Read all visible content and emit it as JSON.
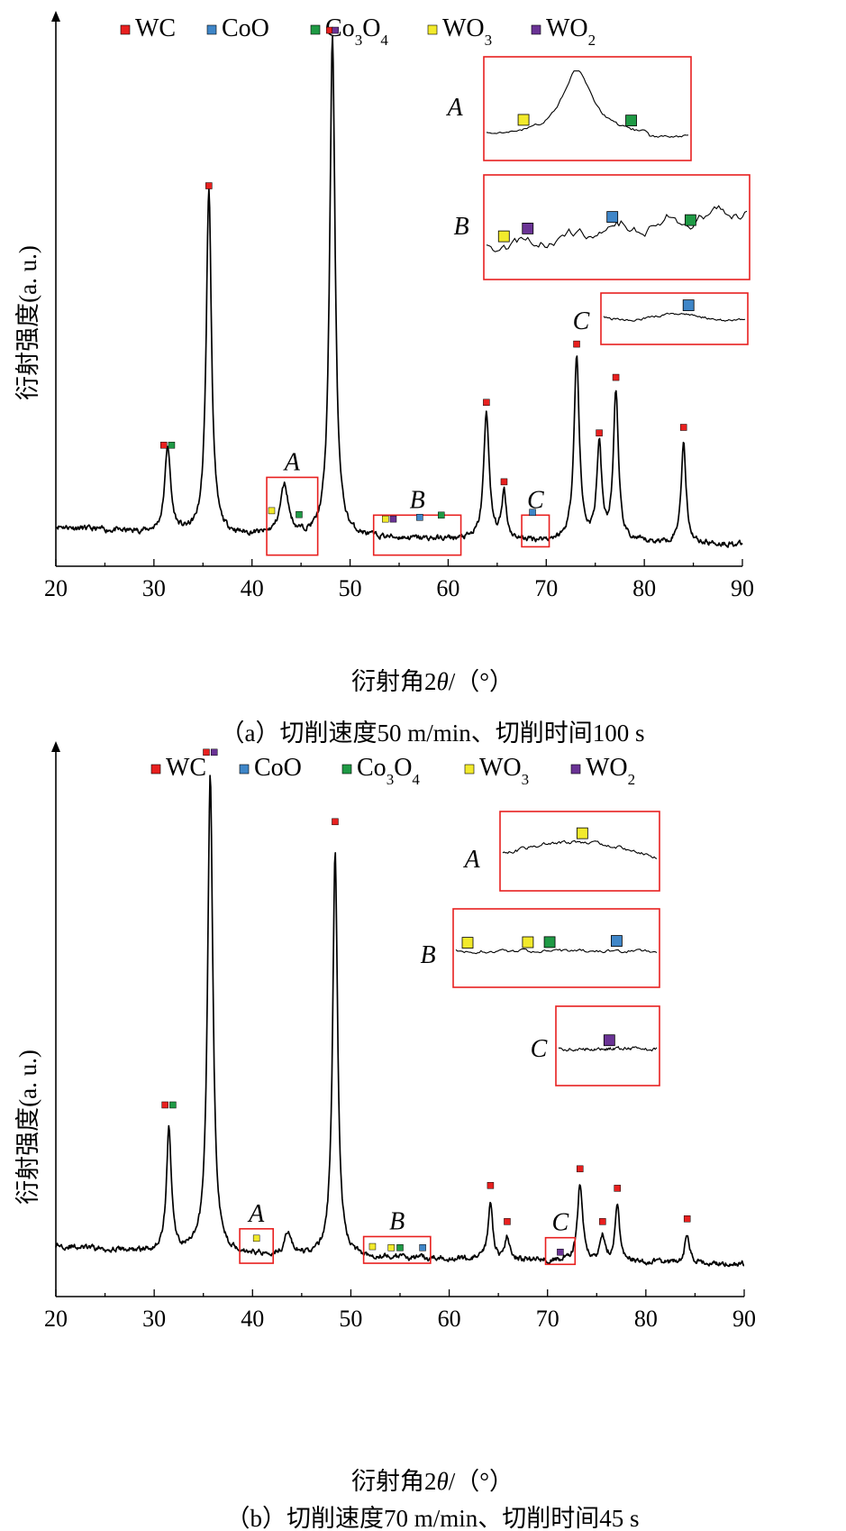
{
  "colors": {
    "WC": "#e8201f",
    "CoO": "#3f86c8",
    "Co3O4": "#1f9a45",
    "WO3": "#f2ea2c",
    "WO2": "#6a3395",
    "highlight": "#e8201f",
    "curve": "#000000"
  },
  "legend": [
    {
      "key": "WC",
      "base": "WC",
      "sub": ""
    },
    {
      "key": "CoO",
      "base": "CoO",
      "sub": ""
    },
    {
      "key": "Co3O4",
      "base": "Co",
      "sub": "3",
      "base2": "O",
      "sub2": "4"
    },
    {
      "key": "WO3",
      "base": "WO",
      "sub": "3"
    },
    {
      "key": "WO2",
      "base": "WO",
      "sub": "2"
    }
  ],
  "chart_data": [
    {
      "type": "line",
      "caption": "（a）切削速度50 m/min、切削时间100 s",
      "xlabel": "衍射角2θ/（°）",
      "ylabel": "衍射强度(a. u.)",
      "xlim": [
        20,
        90
      ],
      "xticks": [
        20,
        30,
        40,
        50,
        60,
        70,
        80,
        90
      ],
      "baseline": 0.06,
      "peaks": [
        {
          "x": 31.4,
          "h": 0.155,
          "w": 0.35
        },
        {
          "x": 35.6,
          "h": 0.62,
          "w": 0.32
        },
        {
          "x": 43.3,
          "h": 0.09,
          "w": 0.5
        },
        {
          "x": 48.2,
          "h": 0.9,
          "w": 0.33
        },
        {
          "x": 63.9,
          "h": 0.23,
          "w": 0.33
        },
        {
          "x": 65.7,
          "h": 0.085,
          "w": 0.28
        },
        {
          "x": 73.1,
          "h": 0.33,
          "w": 0.33
        },
        {
          "x": 75.4,
          "h": 0.17,
          "w": 0.3
        },
        {
          "x": 77.1,
          "h": 0.27,
          "w": 0.3
        },
        {
          "x": 84.0,
          "h": 0.18,
          "w": 0.3
        }
      ],
      "markers": [
        {
          "x": 31.0,
          "y": 0.218,
          "phase": "WC"
        },
        {
          "x": 31.8,
          "y": 0.218,
          "phase": "Co3O4"
        },
        {
          "x": 35.6,
          "y": 0.685,
          "phase": "WC"
        },
        {
          "x": 47.9,
          "y": 0.965,
          "phase": "WC"
        },
        {
          "x": 48.5,
          "y": 0.965,
          "phase": "WO2"
        },
        {
          "x": 63.9,
          "y": 0.295,
          "phase": "WC"
        },
        {
          "x": 65.7,
          "y": 0.152,
          "phase": "WC"
        },
        {
          "x": 73.1,
          "y": 0.4,
          "phase": "WC"
        },
        {
          "x": 75.4,
          "y": 0.24,
          "phase": "WC"
        },
        {
          "x": 77.1,
          "y": 0.34,
          "phase": "WC"
        },
        {
          "x": 84.0,
          "y": 0.25,
          "phase": "WC"
        },
        {
          "x": 42.0,
          "y": 0.1,
          "phase": "WO3"
        },
        {
          "x": 44.8,
          "y": 0.093,
          "phase": "Co3O4"
        },
        {
          "x": 53.6,
          "y": 0.085,
          "phase": "WO3"
        },
        {
          "x": 54.4,
          "y": 0.085,
          "phase": "WO2"
        },
        {
          "x": 57.1,
          "y": 0.088,
          "phase": "CoO"
        },
        {
          "x": 59.3,
          "y": 0.092,
          "phase": "Co3O4"
        },
        {
          "x": 68.6,
          "y": 0.097,
          "phase": "CoO"
        }
      ],
      "regions": [
        {
          "label": "A",
          "x0": 41.5,
          "x1": 46.7,
          "y0": 0.02,
          "y1": 0.16
        },
        {
          "label": "B",
          "x0": 52.4,
          "x1": 61.3,
          "y0": 0.02,
          "y1": 0.092
        },
        {
          "label": "C",
          "x0": 67.5,
          "x1": 70.3,
          "y0": 0.035,
          "y1": 0.092
        }
      ],
      "insets": [
        {
          "label": "A",
          "markers": [
            {
              "t": 0.18,
              "phase": "WO3"
            },
            {
              "t": 0.72,
              "phase": "Co3O4"
            }
          ]
        },
        {
          "label": "B",
          "markers": [
            {
              "t": 0.07,
              "phase": "WO3"
            },
            {
              "t": 0.16,
              "phase": "WO2"
            },
            {
              "t": 0.48,
              "phase": "CoO"
            },
            {
              "t": 0.78,
              "phase": "Co3O4"
            }
          ]
        },
        {
          "label": "C",
          "markers": [
            {
              "t": 0.6,
              "phase": "CoO"
            }
          ]
        }
      ]
    },
    {
      "type": "line",
      "caption": "（b）切削速度70 m/min、切削时间45 s",
      "xlabel": "衍射角2θ/（°）",
      "ylabel": "衍射强度(a. u.)",
      "xlim": [
        20,
        90
      ],
      "xticks": [
        20,
        30,
        40,
        50,
        60,
        70,
        80,
        90
      ],
      "baseline": 0.08,
      "peaks": [
        {
          "x": 31.5,
          "h": 0.22,
          "w": 0.3
        },
        {
          "x": 35.7,
          "h": 0.86,
          "w": 0.32
        },
        {
          "x": 43.6,
          "h": 0.04,
          "w": 0.4
        },
        {
          "x": 48.4,
          "h": 0.73,
          "w": 0.3
        },
        {
          "x": 64.2,
          "h": 0.1,
          "w": 0.28
        },
        {
          "x": 65.9,
          "h": 0.04,
          "w": 0.26
        },
        {
          "x": 73.3,
          "h": 0.14,
          "w": 0.3
        },
        {
          "x": 75.6,
          "h": 0.045,
          "w": 0.26
        },
        {
          "x": 77.1,
          "h": 0.1,
          "w": 0.28
        },
        {
          "x": 84.2,
          "h": 0.05,
          "w": 0.28
        }
      ],
      "markers": [
        {
          "x": 31.1,
          "y": 0.345,
          "phase": "WC"
        },
        {
          "x": 31.9,
          "y": 0.345,
          "phase": "Co3O4"
        },
        {
          "x": 35.3,
          "y": 0.98,
          "phase": "WC"
        },
        {
          "x": 36.1,
          "y": 0.98,
          "phase": "WO2"
        },
        {
          "x": 48.4,
          "y": 0.855,
          "phase": "WC"
        },
        {
          "x": 64.2,
          "y": 0.2,
          "phase": "WC"
        },
        {
          "x": 65.9,
          "y": 0.135,
          "phase": "WC"
        },
        {
          "x": 73.3,
          "y": 0.23,
          "phase": "WC"
        },
        {
          "x": 75.6,
          "y": 0.135,
          "phase": "WC"
        },
        {
          "x": 77.1,
          "y": 0.195,
          "phase": "WC"
        },
        {
          "x": 84.2,
          "y": 0.14,
          "phase": "WC"
        },
        {
          "x": 40.4,
          "y": 0.105,
          "phase": "WO3"
        },
        {
          "x": 52.2,
          "y": 0.09,
          "phase": "WO3"
        },
        {
          "x": 54.1,
          "y": 0.088,
          "phase": "WO3"
        },
        {
          "x": 55.0,
          "y": 0.088,
          "phase": "Co3O4"
        },
        {
          "x": 57.3,
          "y": 0.088,
          "phase": "CoO"
        },
        {
          "x": 71.3,
          "y": 0.08,
          "phase": "WO2"
        }
      ],
      "regions": [
        {
          "label": "A",
          "x0": 38.7,
          "x1": 42.1,
          "y0": 0.06,
          "y1": 0.122
        },
        {
          "label": "B",
          "x0": 51.3,
          "x1": 58.1,
          "y0": 0.06,
          "y1": 0.108
        },
        {
          "label": "C",
          "x0": 69.8,
          "x1": 72.8,
          "y0": 0.058,
          "y1": 0.106
        }
      ],
      "insets": [
        {
          "label": "A",
          "markers": [
            {
              "t": 0.52,
              "phase": "WO3"
            }
          ]
        },
        {
          "label": "B",
          "markers": [
            {
              "t": 0.06,
              "phase": "WO3"
            },
            {
              "t": 0.36,
              "phase": "WO3"
            },
            {
              "t": 0.47,
              "phase": "Co3O4"
            },
            {
              "t": 0.8,
              "phase": "CoO"
            }
          ]
        },
        {
          "label": "C",
          "markers": [
            {
              "t": 0.52,
              "phase": "WO2"
            }
          ]
        }
      ]
    }
  ]
}
